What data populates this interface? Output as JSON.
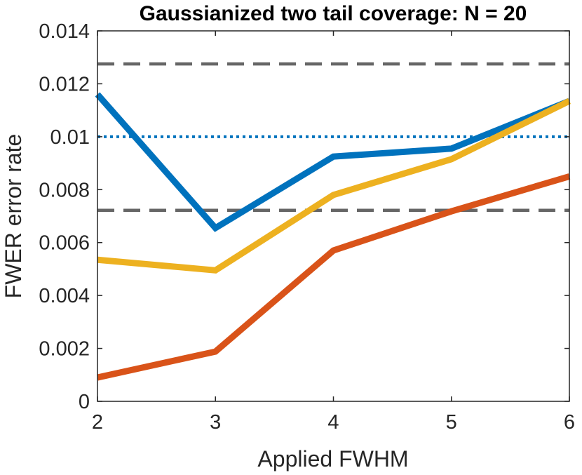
{
  "chart_data": {
    "type": "line",
    "title": "Gaussianized two tail coverage: N = 20",
    "xlabel": "Applied FWHM",
    "ylabel": "FWER error rate",
    "xlim": [
      2,
      6
    ],
    "ylim": [
      0,
      0.014
    ],
    "x": [
      2,
      3,
      4,
      5,
      6
    ],
    "xticks": [
      "2",
      "3",
      "4",
      "5",
      "6"
    ],
    "yticks": [
      "0",
      "0.002",
      "0.004",
      "0.006",
      "0.008",
      "0.01",
      "0.012",
      "0.014"
    ],
    "grid": false,
    "series": [
      {
        "color": "#0072BD",
        "values": [
          0.0116,
          0.00655,
          0.00925,
          0.00955,
          0.01135
        ]
      },
      {
        "color": "#EDB120",
        "values": [
          0.00535,
          0.00495,
          0.0078,
          0.00915,
          0.01135
        ]
      },
      {
        "color": "#D95319",
        "values": [
          0.0009,
          0.00188,
          0.0057,
          0.00718,
          0.0085
        ]
      }
    ],
    "reference_lines": [
      {
        "y": 0.01,
        "style": "dotted",
        "color": "#0072BD"
      },
      {
        "y": 0.01275,
        "style": "dashed",
        "color": "#666666"
      },
      {
        "y": 0.00722,
        "style": "dashed",
        "color": "#666666"
      }
    ]
  }
}
